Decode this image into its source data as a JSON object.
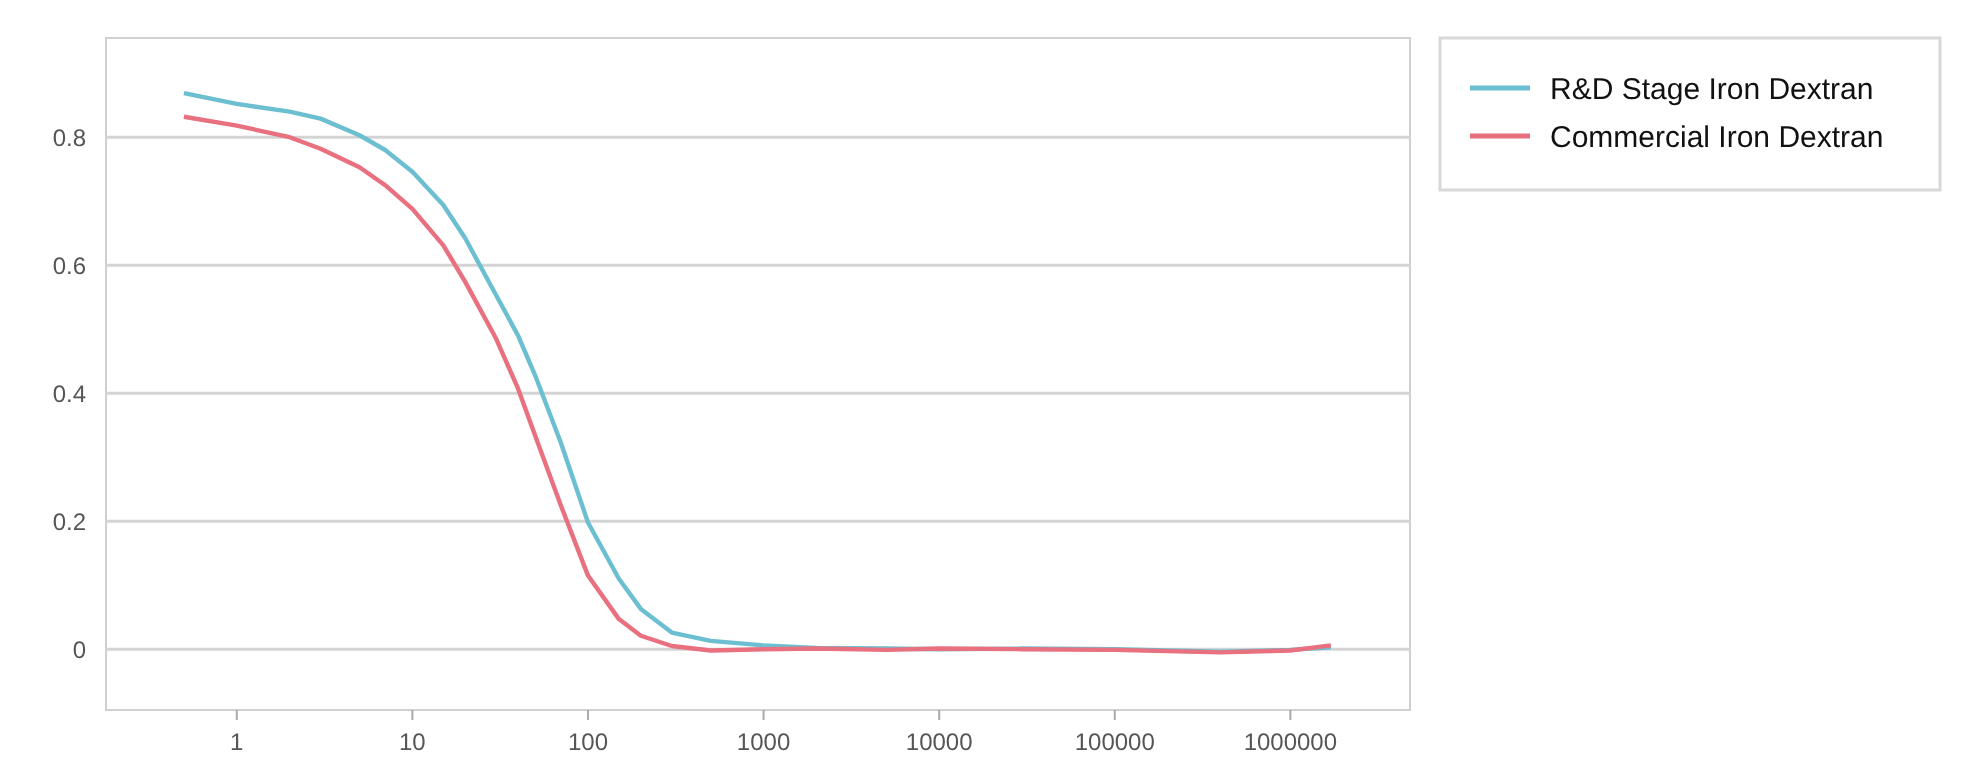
{
  "chart_data": {
    "type": "line",
    "log": "x",
    "grid": "y",
    "legend": "top right",
    "line_style": "solid",
    "marker": "none",
    "xlim": [
      0.18,
      4800000
    ],
    "ylim": [
      -0.095,
      0.955
    ],
    "xticks": [
      1,
      10,
      100,
      1000,
      10000,
      100000,
      1000000
    ],
    "yticks": [
      0,
      0.2,
      0.4,
      0.6,
      0.8
    ],
    "series": [
      {
        "name": "R&D Stage Iron Dextran",
        "color": "#6bbfd1",
        "x": [
          0.5,
          1,
          2,
          3,
          5,
          7,
          10,
          15,
          20,
          30,
          40,
          50,
          70,
          100,
          150,
          200,
          300,
          500,
          1000,
          2000,
          5000,
          10000,
          30000,
          100000,
          400000,
          1000000,
          1700000
        ],
        "values": [
          0.869,
          0.852,
          0.84,
          0.829,
          0.803,
          0.78,
          0.746,
          0.694,
          0.642,
          0.553,
          0.49,
          0.428,
          0.323,
          0.198,
          0.11,
          0.063,
          0.026,
          0.013,
          0.006,
          0.002,
          0.001,
          0,
          0.001,
          0,
          -0.004,
          -0.001,
          0.003
        ]
      },
      {
        "name": "Commercial Iron Dextran",
        "color": "#e8707f",
        "x": [
          0.5,
          1,
          2,
          3,
          5,
          7,
          10,
          15,
          20,
          30,
          40,
          50,
          70,
          100,
          150,
          200,
          300,
          500,
          1000,
          2000,
          5000,
          10000,
          30000,
          100000,
          400000,
          1000000,
          1700000
        ],
        "values": [
          0.832,
          0.818,
          0.8,
          0.782,
          0.753,
          0.725,
          0.688,
          0.631,
          0.574,
          0.485,
          0.407,
          0.334,
          0.225,
          0.115,
          0.047,
          0.021,
          0.005,
          -0.002,
          0,
          0.001,
          -0.001,
          0.001,
          0,
          -0.001,
          -0.005,
          -0.002,
          0.006
        ]
      }
    ]
  }
}
